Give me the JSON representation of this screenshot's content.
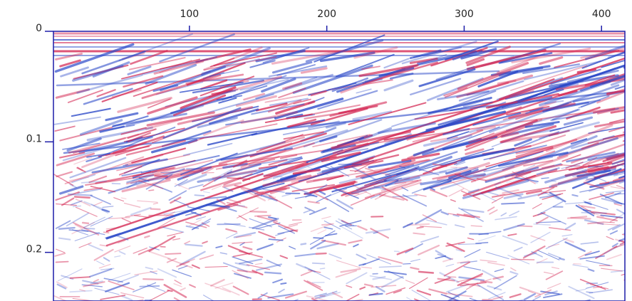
{
  "chart_data": {
    "type": "image",
    "xlim": [
      1,
      417
    ],
    "xticks": [
      100,
      200,
      300,
      400
    ],
    "xaxis": "top",
    "ylim": [
      0,
      0.244
    ],
    "yticks": [
      0,
      0.1,
      0.2
    ],
    "yreversed": true,
    "colormap": [
      "#d42a55",
      "#ffffff",
      "#2a48c8"
    ],
    "axis_color": "#1c1ca8"
  }
}
